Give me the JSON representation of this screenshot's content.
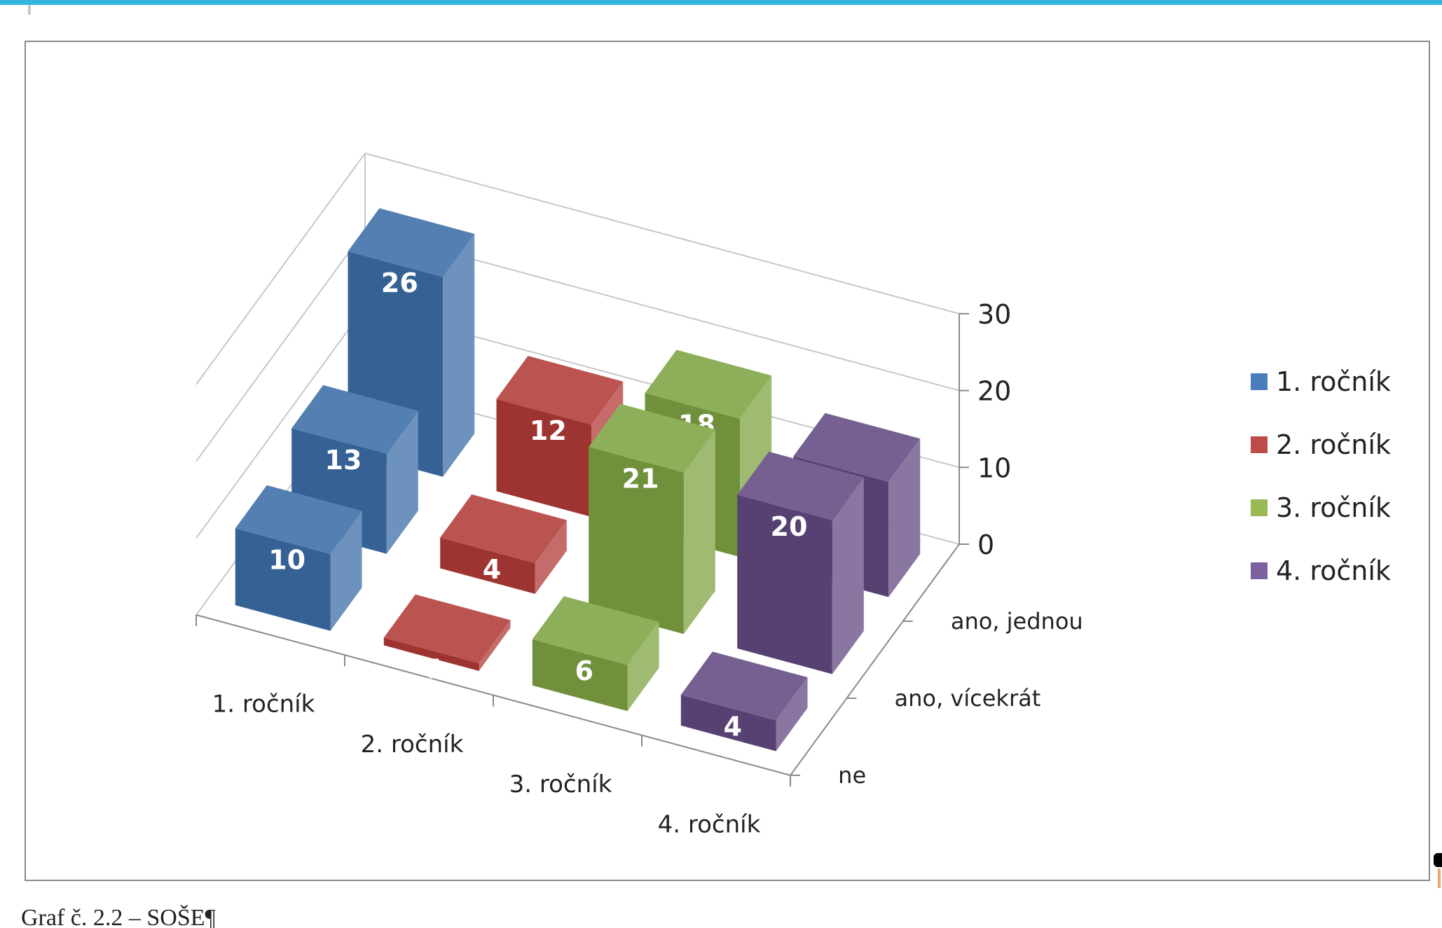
{
  "caption": "Graf č. 2.2 – SOŠE¶",
  "chart_data": {
    "type": "bar3d",
    "categories": [
      "1. ročník",
      "2. ročník",
      "3. ročník",
      "4. ročník"
    ],
    "depth_categories": [
      "ne",
      "ano, vícekrát",
      "ano, jednou"
    ],
    "zlim": [
      0,
      30
    ],
    "z_ticks": [
      "0",
      "10",
      "20",
      "30"
    ],
    "grid": true,
    "legend_position": "right",
    "series": [
      {
        "name": "1. ročník",
        "color": "#3c6ea8",
        "values": {
          "ne": 10,
          "ano, vícekrát": 13,
          "ano, jednou": 26
        }
      },
      {
        "name": "2. ročník",
        "color": "#b23b38",
        "values": {
          "ne": 1,
          "ano, vícekrát": 4,
          "ano, jednou": 12
        }
      },
      {
        "name": "3. ročník",
        "color": "#7fa443",
        "values": {
          "ne": 6,
          "ano, vícekrát": 21,
          "ano, jednou": 18
        }
      },
      {
        "name": "4. ročník",
        "color": "#634a82",
        "values": {
          "ne": 4,
          "ano, vícekrát": 20,
          "ano, jednou": 15
        }
      }
    ]
  }
}
